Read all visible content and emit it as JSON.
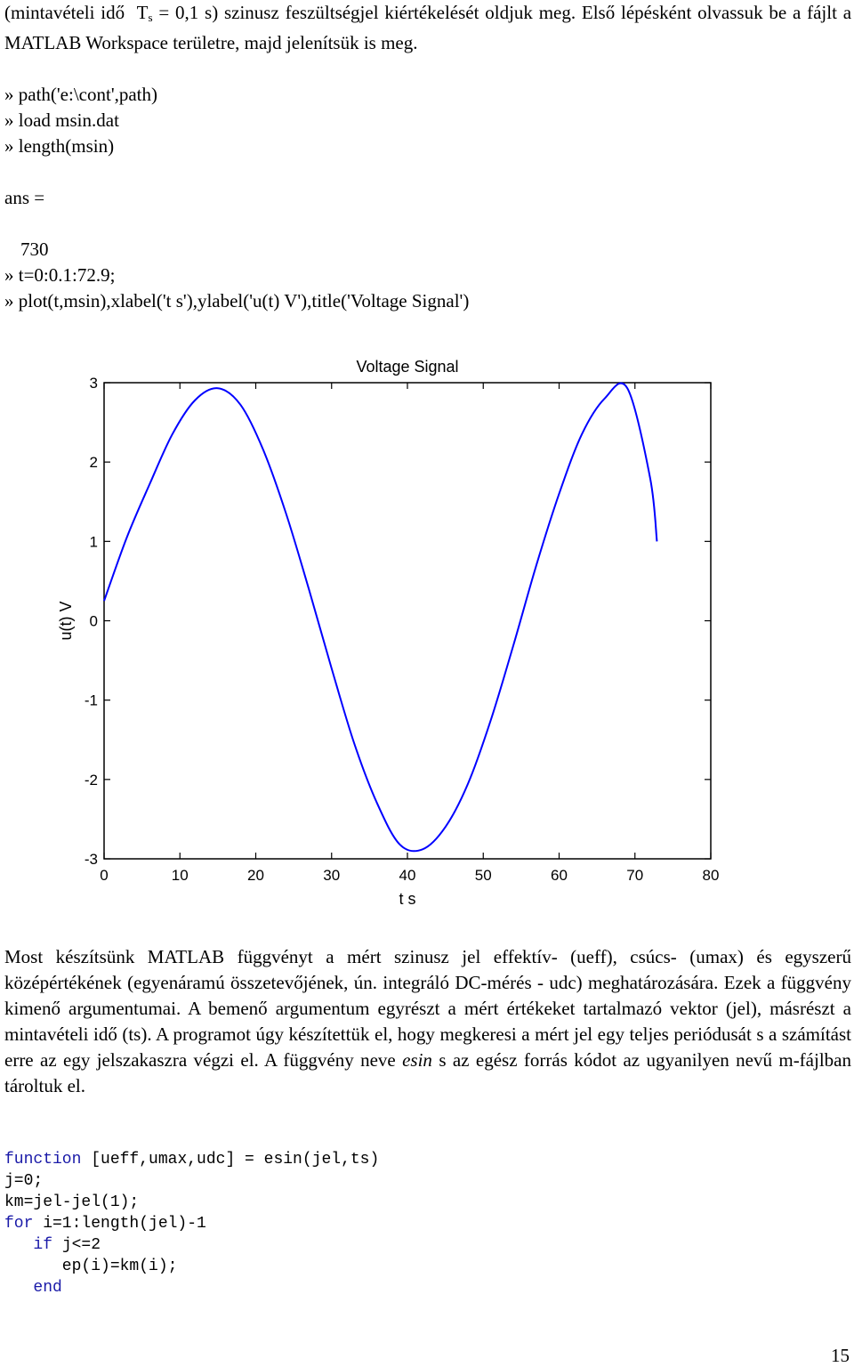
{
  "intro": {
    "pre": "(mintavételi idő",
    "ts_main": "T",
    "ts_sub": "s",
    "ts_rest": "= 0,1 s",
    "post": ") szinusz feszültségjel kiértékelését oldjuk meg. Első lépésként olvassuk be a fájlt a MATLAB Workspace területre, majd jelenítsük is meg."
  },
  "commands": [
    "» path('e:\\cont',path)",
    "» load msin.dat",
    "» length(msin)",
    "ans =",
    "730",
    "» t=0:0.1:72.9;",
    "» plot(t,msin),xlabel('t  s'),ylabel('u(t)  V'),title('Voltage Signal')"
  ],
  "chart_data": {
    "type": "line",
    "title": "Voltage Signal",
    "xlabel": "t  s",
    "ylabel": "u(t)  V",
    "xlim": [
      0,
      80
    ],
    "ylim": [
      -3,
      3
    ],
    "xticks": [
      "0",
      "10",
      "20",
      "30",
      "40",
      "50",
      "60",
      "70",
      "80"
    ],
    "yticks": [
      "3",
      "2",
      "1",
      "0",
      "-1",
      "-2",
      "-3"
    ],
    "grid": false,
    "series": [
      {
        "color": "#0000ff",
        "x": [
          0,
          3,
          6,
          9,
          12,
          15,
          18,
          21,
          24,
          27,
          30,
          33,
          36,
          39,
          42,
          45,
          48,
          51,
          54,
          57,
          60,
          63,
          66,
          69,
          72,
          72.9
        ],
        "values": [
          0.25,
          1.05,
          1.72,
          2.35,
          2.78,
          2.93,
          2.72,
          2.15,
          1.35,
          0.4,
          -0.6,
          -1.55,
          -2.3,
          -2.82,
          -2.88,
          -2.6,
          -2.05,
          -1.25,
          -0.3,
          0.7,
          1.6,
          2.35,
          2.8,
          2.93,
          1.8,
          1.0
        ]
      }
    ]
  },
  "paragraph": {
    "part1": "Most készítsünk MATLAB függvényt a mért szinusz jel effektív- (ueff), csúcs- (umax) és egyszerű középértékének (egyenáramú összetevőjének, ún. integráló DC-mérés - udc) meghatározására. Ezek a függvény kimenő argumentumai. A bemenő argumentum egyrészt a mért értékeket tartalmazó vektor (jel), másrészt a mintavételi idő (ts). A programot úgy készítettük el, hogy megkeresi a mért jel egy teljes periódusát s a számítást erre az egy jelszakaszra végzi el. A függvény neve ",
    "italic": "esin",
    "part2": " s az egész forrás kódot az ugyanilyen nevű m-fájlban tároltuk el."
  },
  "code": {
    "l1_kw": "function",
    "l1_rest": " [ueff,umax,udc] = esin(jel,ts)",
    "l2": "j=0;",
    "l3": "km=jel-jel(1);",
    "l4_kw": "for",
    "l4_rest": " i=1:length(jel)-1",
    "l5_indent": "   ",
    "l5_kw": "if",
    "l5_rest": " j<=2",
    "l6": "      ep(i)=km(i);",
    "l7_indent": "   ",
    "l7_kw": "end"
  },
  "page_number": "15"
}
